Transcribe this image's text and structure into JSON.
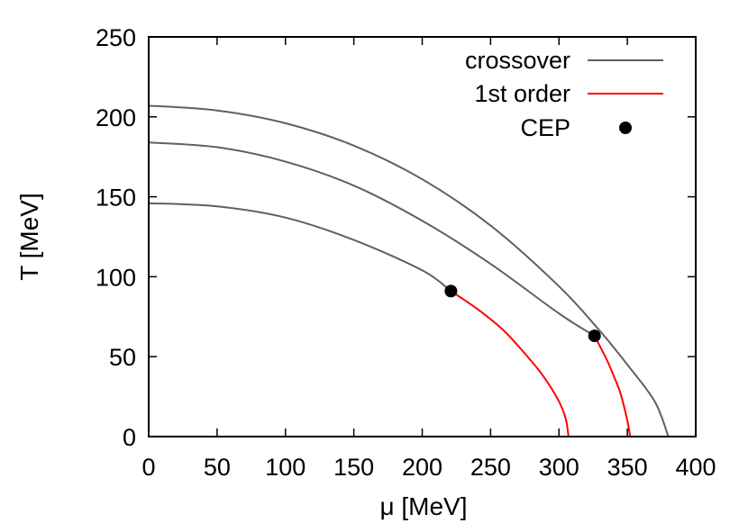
{
  "chart_data": {
    "type": "line",
    "title": "",
    "xlabel": "μ [MeV]",
    "ylabel": "T [MeV]",
    "xlim": [
      0,
      400
    ],
    "ylim": [
      0,
      250
    ],
    "xticks": [
      "0",
      "50",
      "100",
      "150",
      "200",
      "250",
      "300",
      "350",
      "400"
    ],
    "yticks": [
      "0",
      "50",
      "100",
      "150",
      "200",
      "250"
    ],
    "grid": false,
    "legend_position": "top-right",
    "legend": [
      {
        "label": "crossover",
        "kind": "line",
        "color": "#606060"
      },
      {
        "label": "1st order",
        "kind": "line",
        "color": "#ff0000"
      },
      {
        "label": "CEP",
        "kind": "point",
        "color": "#000000"
      }
    ],
    "curves": [
      {
        "crossover": {
          "x": [
            0,
            50,
            100,
            150,
            200,
            250,
            300,
            330,
            350,
            370,
            380
          ],
          "y": [
            207,
            204,
            196,
            182,
            161,
            132,
            94,
            66,
            45,
            22,
            0
          ]
        }
      },
      {
        "crossover": {
          "x": [
            0,
            50,
            100,
            150,
            200,
            250,
            300,
            326
          ],
          "y": [
            184,
            181,
            172,
            157,
            135,
            108,
            77,
            63
          ]
        },
        "first_order": {
          "x": [
            326,
            335,
            340,
            345,
            350,
            352
          ],
          "y": [
            63,
            48,
            38,
            27,
            10,
            0
          ]
        },
        "cep": {
          "x": 326,
          "y": 63
        }
      },
      {
        "crossover": {
          "x": [
            0,
            50,
            100,
            150,
            200,
            221
          ],
          "y": [
            146,
            144,
            137,
            123,
            104,
            91
          ]
        },
        "first_order": {
          "x": [
            221,
            240,
            260,
            280,
            290,
            300,
            305,
            307
          ],
          "y": [
            91,
            80,
            66,
            47,
            36,
            22,
            11,
            0
          ]
        },
        "cep": {
          "x": 221,
          "y": 91
        }
      }
    ]
  }
}
